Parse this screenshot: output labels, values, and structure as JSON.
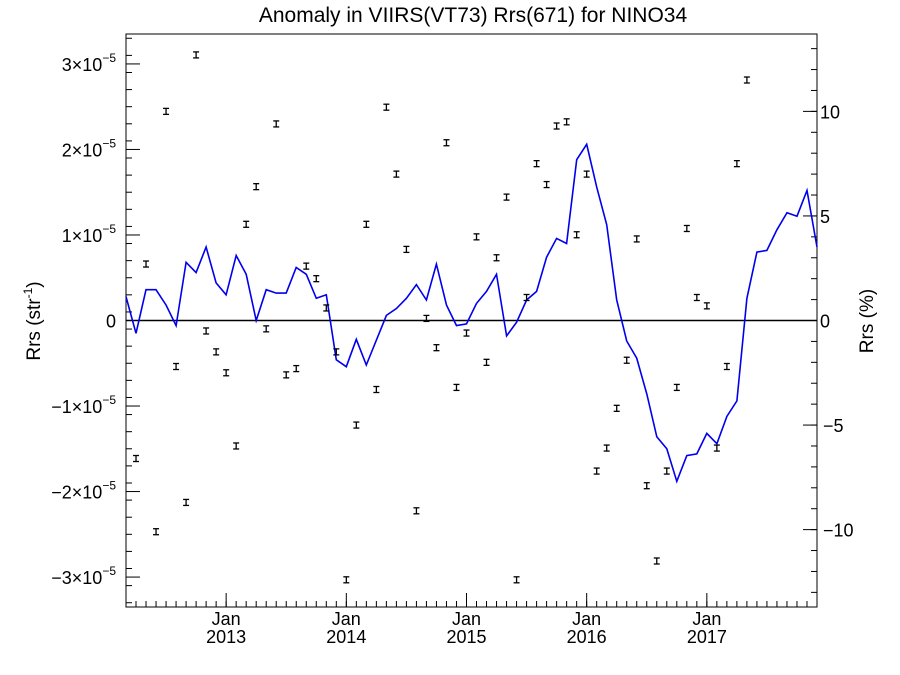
{
  "chart_data": {
    "type": "line",
    "title": "Anomaly in VIIRS(VT73) Rrs(671) for NINO34",
    "ylabel_left": "Rrs (str",
    "ylabel_left_sup": "-1",
    "ylabel_left_end": ")",
    "ylabel_right": "Rrs (%)",
    "left_axis": {
      "ylim": [
        -3.35e-05,
        3.35e-05
      ],
      "ticks": [
        {
          "v": 3e-05,
          "label": "3×10",
          "exp": "−5"
        },
        {
          "v": 2e-05,
          "label": "2×10",
          "exp": "−5"
        },
        {
          "v": 1e-05,
          "label": "1×10",
          "exp": "−5"
        },
        {
          "v": 0,
          "label": "0",
          "exp": ""
        },
        {
          "v": -1e-05,
          "label": "−1×10",
          "exp": "−5"
        },
        {
          "v": -2e-05,
          "label": "−2×10",
          "exp": "−5"
        },
        {
          "v": -3e-05,
          "label": "−3×10",
          "exp": "−5"
        }
      ]
    },
    "right_axis": {
      "ylim": [
        -13.7,
        13.7
      ],
      "ticks": [
        {
          "v": 10,
          "label": "10"
        },
        {
          "v": 5,
          "label": "5"
        },
        {
          "v": 0,
          "label": "0"
        },
        {
          "v": -5,
          "label": "−5"
        },
        {
          "v": -10,
          "label": "−10"
        }
      ]
    },
    "x_axis": {
      "xlim": [
        "2012-03",
        "2017-12"
      ],
      "ticks": [
        {
          "x": "2013-01",
          "month": "Jan",
          "year": "2013"
        },
        {
          "x": "2014-01",
          "month": "Jan",
          "year": "2014"
        },
        {
          "x": "2015-01",
          "month": "Jan",
          "year": "2015"
        },
        {
          "x": "2016-01",
          "month": "Jan",
          "year": "2016"
        },
        {
          "x": "2017-01",
          "month": "Jan",
          "year": "2017"
        }
      ]
    },
    "zero_line": true,
    "series": [
      {
        "color": "#0000ee",
        "unit": "str-1",
        "points": [
          [
            "2012-03",
            2.8e-06
          ],
          [
            "2012-04",
            -1.5e-06
          ],
          [
            "2012-05",
            3.6e-06
          ],
          [
            "2012-06",
            3.6e-06
          ],
          [
            "2012-07",
            1.8e-06
          ],
          [
            "2012-08",
            -6e-07
          ],
          [
            "2012-09",
            6.8e-06
          ],
          [
            "2012-10",
            5.6e-06
          ],
          [
            "2012-11",
            8.6e-06
          ],
          [
            "2012-12",
            4.4e-06
          ],
          [
            "2013-01",
            3e-06
          ],
          [
            "2013-02",
            7.6e-06
          ],
          [
            "2013-03",
            5.4e-06
          ],
          [
            "2013-04",
            0.0
          ],
          [
            "2013-05",
            3.6e-06
          ],
          [
            "2013-06",
            3.2e-06
          ],
          [
            "2013-07",
            3.2e-06
          ],
          [
            "2013-08",
            6.2e-06
          ],
          [
            "2013-09",
            5.4e-06
          ],
          [
            "2013-10",
            2.6e-06
          ],
          [
            "2013-11",
            3e-06
          ],
          [
            "2013-12",
            -4.6e-06
          ],
          [
            "2014-01",
            -5.4e-06
          ],
          [
            "2014-02",
            -2.2e-06
          ],
          [
            "2014-03",
            -5.2e-06
          ],
          [
            "2014-05",
            6e-07
          ],
          [
            "2014-06",
            1.4e-06
          ],
          [
            "2014-07",
            2.6e-06
          ],
          [
            "2014-08",
            4.2e-06
          ],
          [
            "2014-09",
            2.4e-06
          ],
          [
            "2014-10",
            6.6e-06
          ],
          [
            "2014-11",
            1.8e-06
          ],
          [
            "2014-12",
            -6e-07
          ],
          [
            "2015-01",
            -4e-07
          ],
          [
            "2015-02",
            2e-06
          ],
          [
            "2015-03",
            3.4e-06
          ],
          [
            "2015-04",
            5.4e-06
          ],
          [
            "2015-05",
            -1.8e-06
          ],
          [
            "2015-06",
            -2e-07
          ],
          [
            "2015-07",
            2.4e-06
          ],
          [
            "2015-08",
            3.4e-06
          ],
          [
            "2015-09",
            7.4e-06
          ],
          [
            "2015-10",
            9.6e-06
          ],
          [
            "2015-11",
            9e-06
          ],
          [
            "2015-12",
            1.88e-05
          ],
          [
            "2016-01",
            2.06e-05
          ],
          [
            "2016-02",
            1.56e-05
          ],
          [
            "2016-03",
            1.12e-05
          ],
          [
            "2016-04",
            2.4e-06
          ],
          [
            "2016-05",
            -2.4e-06
          ],
          [
            "2016-06",
            -4.4e-06
          ],
          [
            "2016-07",
            -8.6e-06
          ],
          [
            "2016-08",
            -1.36e-05
          ],
          [
            "2016-09",
            -1.5e-05
          ],
          [
            "2016-10",
            -1.88e-05
          ],
          [
            "2016-11",
            -1.58e-05
          ],
          [
            "2016-12",
            -1.56e-05
          ],
          [
            "2017-01",
            -1.32e-05
          ],
          [
            "2017-02",
            -1.44e-05
          ],
          [
            "2017-03",
            -1.12e-05
          ],
          [
            "2017-04",
            -9.4e-06
          ],
          [
            "2017-05",
            2.6e-06
          ],
          [
            "2017-06",
            8e-06
          ],
          [
            "2017-07",
            8.2e-06
          ],
          [
            "2017-08",
            1.06e-05
          ],
          [
            "2017-09",
            1.26e-05
          ],
          [
            "2017-10",
            1.22e-05
          ],
          [
            "2017-11",
            1.52e-05
          ],
          [
            "2017-12",
            8.6e-06
          ]
        ]
      },
      {
        "color": "#000000",
        "style": "points-with-error-bars",
        "unit": "%",
        "points": [
          [
            "2012-04",
            -6.6
          ],
          [
            "2012-05",
            2.7
          ],
          [
            "2012-06",
            -10.1
          ],
          [
            "2012-07",
            10.0
          ],
          [
            "2012-08",
            -2.2
          ],
          [
            "2012-09",
            -8.7
          ],
          [
            "2012-10",
            12.7
          ],
          [
            "2012-11",
            -0.5
          ],
          [
            "2012-12",
            -1.5
          ],
          [
            "2013-01",
            -2.5
          ],
          [
            "2013-02",
            -6.0
          ],
          [
            "2013-03",
            4.6
          ],
          [
            "2013-04",
            6.4
          ],
          [
            "2013-05",
            -0.4
          ],
          [
            "2013-06",
            9.4
          ],
          [
            "2013-07",
            -2.6
          ],
          [
            "2013-08",
            -2.3
          ],
          [
            "2013-09",
            2.6
          ],
          [
            "2013-10",
            2.0
          ],
          [
            "2013-11",
            0.6
          ],
          [
            "2013-12",
            -1.5
          ],
          [
            "2014-01",
            -12.4
          ],
          [
            "2014-02",
            -5.0
          ],
          [
            "2014-03",
            4.6
          ],
          [
            "2014-04",
            -3.3
          ],
          [
            "2014-05",
            10.2
          ],
          [
            "2014-06",
            7.0
          ],
          [
            "2014-07",
            3.4
          ],
          [
            "2014-08",
            -9.1
          ],
          [
            "2014-09",
            0.1
          ],
          [
            "2014-10",
            -1.3
          ],
          [
            "2014-11",
            8.5
          ],
          [
            "2014-12",
            -3.2
          ],
          [
            "2015-01",
            -0.6
          ],
          [
            "2015-02",
            4.0
          ],
          [
            "2015-03",
            -2.0
          ],
          [
            "2015-04",
            3.0
          ],
          [
            "2015-05",
            5.9
          ],
          [
            "2015-06",
            -12.4
          ],
          [
            "2015-07",
            1.1
          ],
          [
            "2015-08",
            7.5
          ],
          [
            "2015-09",
            6.5
          ],
          [
            "2015-10",
            9.3
          ],
          [
            "2015-11",
            9.5
          ],
          [
            "2015-12",
            4.1
          ],
          [
            "2016-01",
            7.0
          ],
          [
            "2016-02",
            -7.2
          ],
          [
            "2016-03",
            -6.1
          ],
          [
            "2016-04",
            -4.2
          ],
          [
            "2016-05",
            -1.9
          ],
          [
            "2016-06",
            3.9
          ],
          [
            "2016-07",
            -7.9
          ],
          [
            "2016-08",
            -11.5
          ],
          [
            "2016-09",
            -7.2
          ],
          [
            "2016-10",
            -3.2
          ],
          [
            "2016-11",
            4.4
          ],
          [
            "2016-12",
            1.1
          ],
          [
            "2017-01",
            0.7
          ],
          [
            "2017-02",
            -6.1
          ],
          [
            "2017-03",
            -2.2
          ],
          [
            "2017-04",
            7.5
          ],
          [
            "2017-05",
            11.5
          ]
        ]
      }
    ]
  }
}
